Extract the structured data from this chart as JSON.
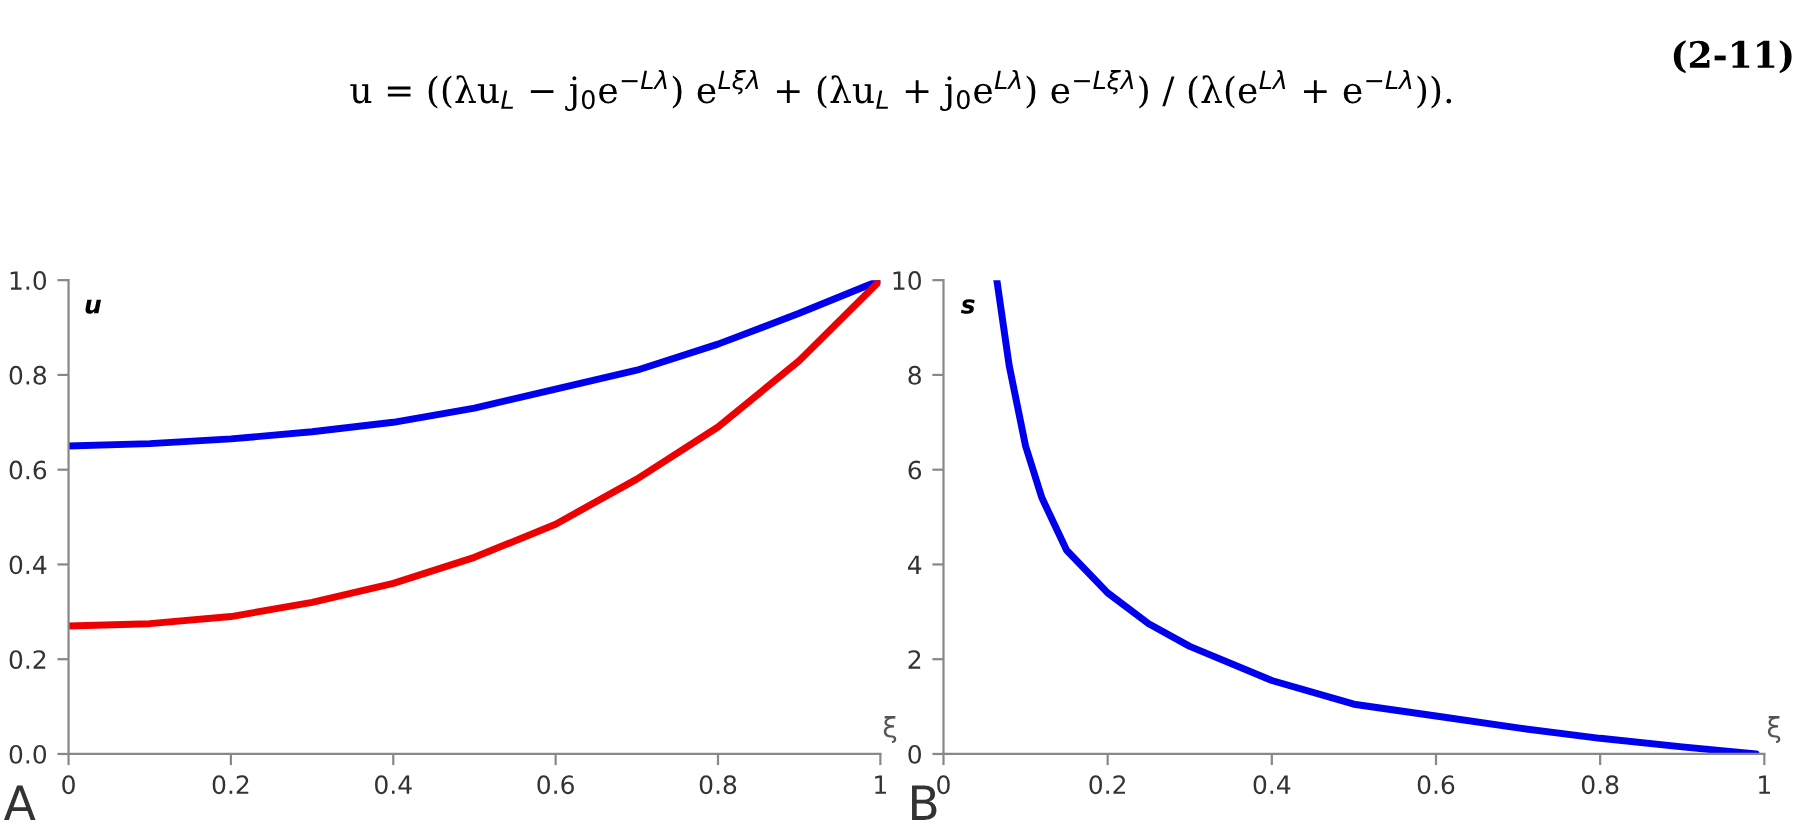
{
  "chart_data": [
    {
      "type": "line",
      "xlabel": "ξ",
      "ylabel": "u",
      "annotations": [
        "u = ((λu$_{L}$ − j$_{0}$e$^{−Lλ}$) e$^{Lξλ}$ + (λu$_{L}$ + j$_{0}$e$^{Lλ}$) e$^{−Lξλ}$) / (λ(e$^{Lλ}$ + e$^{−Lλ}$)).",
        "(2-11)",
        "A"
      ],
      "x": [
        0,
        0.1,
        0.2,
        0.3,
        0.4,
        0.5,
        0.6,
        0.7,
        0.8,
        0.9,
        1
      ],
      "series": [
        {
          "color": "#0000ee",
          "values": [
            0.65,
            0.655,
            0.665,
            0.68,
            0.7,
            0.73,
            0.77,
            0.81,
            0.865,
            0.93,
            1.0
          ]
        },
        {
          "color": "#ee0000",
          "values": [
            0.27,
            0.275,
            0.29,
            0.32,
            0.36,
            0.415,
            0.485,
            0.58,
            0.69,
            0.83,
            1.0
          ]
        }
      ],
      "xlim": [
        0,
        1
      ],
      "ylim": [
        0,
        1
      ],
      "xticks": [
        0,
        0.2,
        0.4,
        0.6,
        0.8,
        1
      ],
      "yticks": [
        {
          "value": 0,
          "label": "0.0"
        },
        0.2,
        0.4,
        0.6,
        0.8,
        {
          "value": 1,
          "label": "1.0"
        }
      ],
      "grid": false,
      "legend": false
    },
    {
      "type": "line",
      "xlabel": "ξ",
      "ylabel": "s",
      "annotations": [
        "B"
      ],
      "x": [
        0.065,
        0.08,
        0.1,
        0.12,
        0.15,
        0.2,
        0.25,
        0.3,
        0.4,
        0.5,
        0.6,
        0.7,
        0.8,
        0.9,
        0.99
      ],
      "series": [
        {
          "color": "#0000ee",
          "values": [
            10,
            8.2,
            6.5,
            5.4,
            4.3,
            3.4,
            2.75,
            2.27,
            1.55,
            1.05,
            0.8,
            0.55,
            0.33,
            0.15,
            0
          ]
        }
      ],
      "xlim": [
        0,
        1
      ],
      "ylim": [
        0,
        10
      ],
      "xticks": [
        0,
        0.2,
        0.4,
        0.6,
        0.8,
        1
      ],
      "yticks": [
        0,
        2,
        4,
        6,
        8,
        10
      ],
      "grid": false,
      "legend": false
    }
  ]
}
